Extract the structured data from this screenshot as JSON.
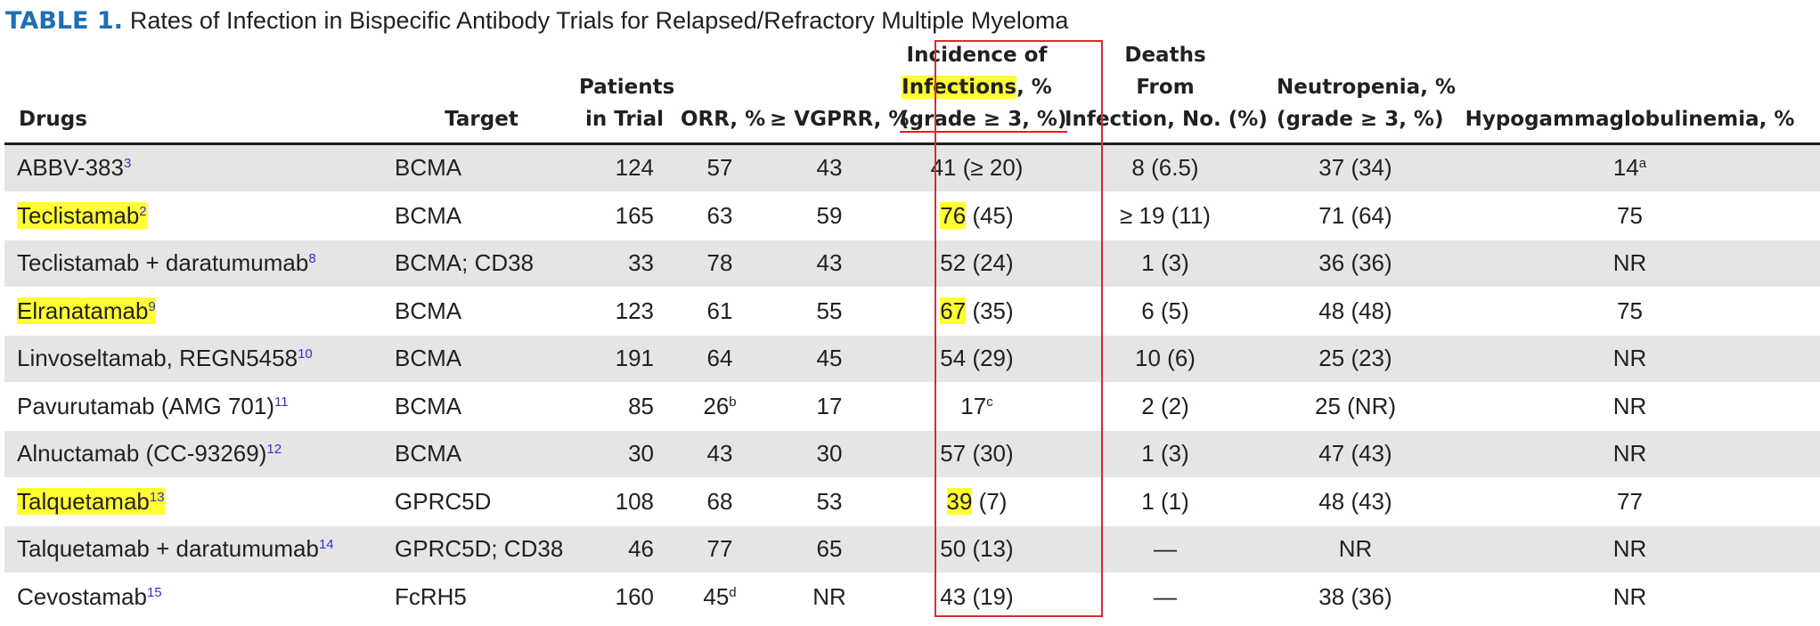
{
  "title": {
    "label": "TABLE 1.",
    "text": "Rates of Infection in Bispecific Antibody Trials for Relapsed/Refractory Multiple Myeloma"
  },
  "colors": {
    "table_label": "#1c6fb5",
    "highlight": "#ffff32",
    "box": "#e0282d",
    "row_shade": "#e6e5e5",
    "reference": "#3030dd"
  },
  "headers": [
    [
      "Drugs"
    ],
    [
      "Target"
    ],
    [
      "Patients",
      "in Trial"
    ],
    [
      "ORR, %"
    ],
    [
      "≥ VGPRR, %"
    ],
    [
      "Incidence of",
      "Infections",
      ", %",
      "(grade ≥ 3, %)"
    ],
    [
      "Deaths",
      "From",
      "Infection, No. (%)"
    ],
    [
      "Neutropenia, %",
      "(grade ≥ 3, %)"
    ],
    [
      "Hypogammaglobulinemia, %"
    ]
  ],
  "rows": [
    {
      "drug": "ABBV-383",
      "ref": "3",
      "hl": false,
      "target": "BCMA",
      "patients": "124",
      "orr": "57",
      "orr_sup": "",
      "vgprr": "43",
      "inf_main": "41 (≥ 20)",
      "inf_rest": "",
      "inf_hl": false,
      "inf_sup": "",
      "deaths": "8 (6.5)",
      "neutro": "37 (34)",
      "hypo": "14",
      "hypo_sup": "a"
    },
    {
      "drug": "Teclistamab",
      "ref": "2",
      "hl": true,
      "target": "BCMA",
      "patients": "165",
      "orr": "63",
      "orr_sup": "",
      "vgprr": "59",
      "inf_main": "76",
      "inf_rest": " (45)",
      "inf_hl": true,
      "inf_sup": "",
      "deaths": "≥ 19 (11)",
      "neutro": "71 (64)",
      "hypo": "75",
      "hypo_sup": ""
    },
    {
      "drug": "Teclistamab + daratumumab",
      "ref": "8",
      "hl": false,
      "target": "BCMA; CD38",
      "patients": "33",
      "orr": "78",
      "orr_sup": "",
      "vgprr": "43",
      "inf_main": "52 (24)",
      "inf_rest": "",
      "inf_hl": false,
      "inf_sup": "",
      "deaths": "1 (3)",
      "neutro": "36 (36)",
      "hypo": "NR",
      "hypo_sup": ""
    },
    {
      "drug": "Elranatamab",
      "ref": "9",
      "hl": true,
      "target": "BCMA",
      "patients": "123",
      "orr": "61",
      "orr_sup": "",
      "vgprr": "55",
      "inf_main": "67",
      "inf_rest": " (35)",
      "inf_hl": true,
      "inf_sup": "",
      "deaths": "6 (5)",
      "neutro": "48 (48)",
      "hypo": "75",
      "hypo_sup": ""
    },
    {
      "drug": "Linvoseltamab, REGN5458",
      "ref": "10",
      "hl": false,
      "target": "BCMA",
      "patients": "191",
      "orr": "64",
      "orr_sup": "",
      "vgprr": "45",
      "inf_main": "54 (29)",
      "inf_rest": "",
      "inf_hl": false,
      "inf_sup": "",
      "deaths": "10 (6)",
      "neutro": "25 (23)",
      "hypo": "NR",
      "hypo_sup": ""
    },
    {
      "drug": "Pavurutamab (AMG 701)",
      "ref": "11",
      "hl": false,
      "target": "BCMA",
      "patients": "85",
      "orr": "26",
      "orr_sup": "b",
      "vgprr": "17",
      "inf_main": "17",
      "inf_rest": "",
      "inf_hl": false,
      "inf_sup": "c",
      "deaths": "2 (2)",
      "neutro": "25 (NR)",
      "hypo": "NR",
      "hypo_sup": ""
    },
    {
      "drug": "Alnuctamab (CC-93269)",
      "ref": "12",
      "hl": false,
      "target": "BCMA",
      "patients": "30",
      "orr": "43",
      "orr_sup": "",
      "vgprr": "30",
      "inf_main": "57 (30)",
      "inf_rest": "",
      "inf_hl": false,
      "inf_sup": "",
      "deaths": "1 (3)",
      "neutro": "47 (43)",
      "hypo": "NR",
      "hypo_sup": ""
    },
    {
      "drug": "Talquetamab",
      "ref": "13",
      "hl": true,
      "target": "GPRC5D",
      "patients": "108",
      "orr": "68",
      "orr_sup": "",
      "vgprr": "53",
      "inf_main": "39",
      "inf_rest": " (7)",
      "inf_hl": true,
      "inf_sup": "",
      "deaths": "1 (1)",
      "neutro": "48 (43)",
      "hypo": "77",
      "hypo_sup": ""
    },
    {
      "drug": "Talquetamab + daratumumab",
      "ref": "14",
      "hl": false,
      "target": "GPRC5D; CD38",
      "patients": "46",
      "orr": "77",
      "orr_sup": "",
      "vgprr": "65",
      "inf_main": "50 (13)",
      "inf_rest": "",
      "inf_hl": false,
      "inf_sup": "",
      "deaths": "—",
      "neutro": "NR",
      "hypo": "NR",
      "hypo_sup": ""
    },
    {
      "drug": "Cevostamab",
      "ref": "15",
      "hl": false,
      "target": "FcRH5",
      "patients": "160",
      "orr": "45",
      "orr_sup": "d",
      "vgprr": "NR",
      "inf_main": "43 (19)",
      "inf_rest": "",
      "inf_hl": false,
      "inf_sup": "",
      "deaths": "—",
      "neutro": "38 (36)",
      "hypo": "NR",
      "hypo_sup": ""
    }
  ]
}
